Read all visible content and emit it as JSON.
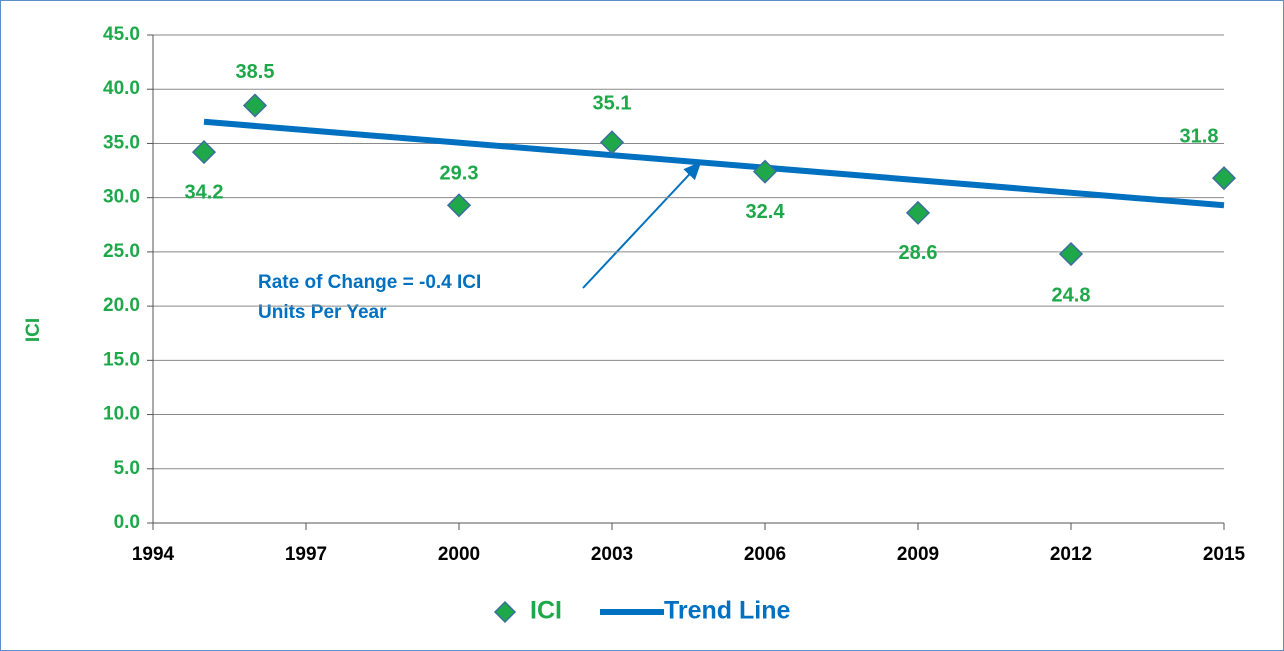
{
  "chart_data": {
    "type": "scatter",
    "y_label": "ICI",
    "annotation": [
      "Rate of Change = -0.4 ICI",
      "Units Per Year"
    ],
    "series": [
      {
        "name": "ICI",
        "type": "scatter",
        "color": "#1fa84a",
        "edge_color": "#3c6e9e",
        "label_color": "#1fa84a",
        "x": [
          1995,
          1996,
          2000,
          2003,
          2006,
          2009,
          2012,
          2015
        ],
        "values": [
          34.2,
          38.5,
          29.3,
          35.1,
          32.4,
          28.6,
          24.8,
          31.8
        ]
      },
      {
        "name": "Trend Line",
        "type": "line",
        "color": "#0070c0",
        "x": [
          1995,
          2015
        ],
        "values": [
          37.0,
          29.3
        ]
      }
    ],
    "xlim": [
      1994,
      2015
    ],
    "xticks": [
      1994,
      1997,
      2000,
      2003,
      2006,
      2009,
      2012,
      2015
    ],
    "ylim": [
      0,
      45
    ],
    "yticks": [
      {
        "value": 0,
        "label": "0.0"
      },
      {
        "value": 5,
        "label": "5.0"
      },
      {
        "value": 10,
        "label": "10.0"
      },
      {
        "value": 15,
        "label": "15.0"
      },
      {
        "value": 20,
        "label": "20.0"
      },
      {
        "value": 25,
        "label": "25.0"
      },
      {
        "value": 30,
        "label": "30.0"
      },
      {
        "value": 35,
        "label": "35.0"
      },
      {
        "value": 40,
        "label": "40.0"
      },
      {
        "value": 45,
        "label": "45.0"
      }
    ],
    "grid": true,
    "legend": "bottom"
  }
}
